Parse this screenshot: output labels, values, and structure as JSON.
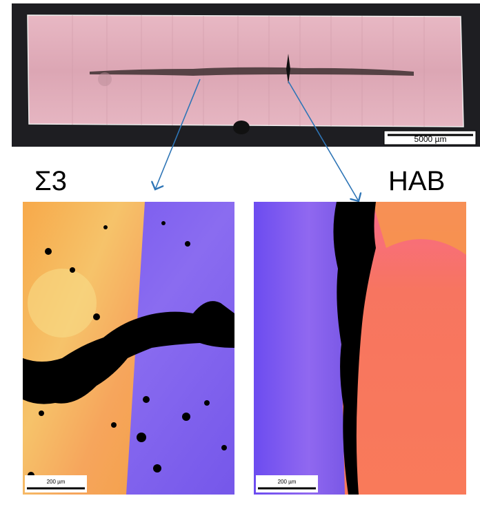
{
  "overview": {
    "scale_bar": "5000 µm"
  },
  "panels": [
    {
      "label": "Σ3",
      "scale_bar": "200 µm"
    },
    {
      "label": "HAB",
      "scale_bar": "200 µm"
    }
  ]
}
